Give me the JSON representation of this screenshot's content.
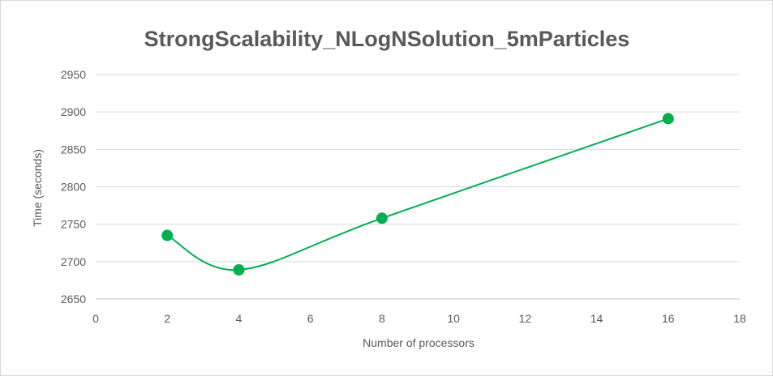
{
  "chart_data": {
    "type": "scatter",
    "title": "StrongScalability_NLogNSolution_5mParticles",
    "xlabel": "Number of processors",
    "ylabel": "Time (seconds)",
    "xlim": [
      0,
      18
    ],
    "ylim": [
      2650,
      2950
    ],
    "xticks": [
      0,
      2,
      4,
      6,
      8,
      10,
      12,
      14,
      16,
      18
    ],
    "yticks": [
      2650,
      2700,
      2750,
      2800,
      2850,
      2900,
      2950
    ],
    "grid": true,
    "legend": "none",
    "smoothed_line": true,
    "series": [
      {
        "x": [
          2,
          4,
          8,
          16
        ],
        "y": [
          2735,
          2689,
          2758,
          2891
        ],
        "color": "#00b050"
      }
    ]
  }
}
